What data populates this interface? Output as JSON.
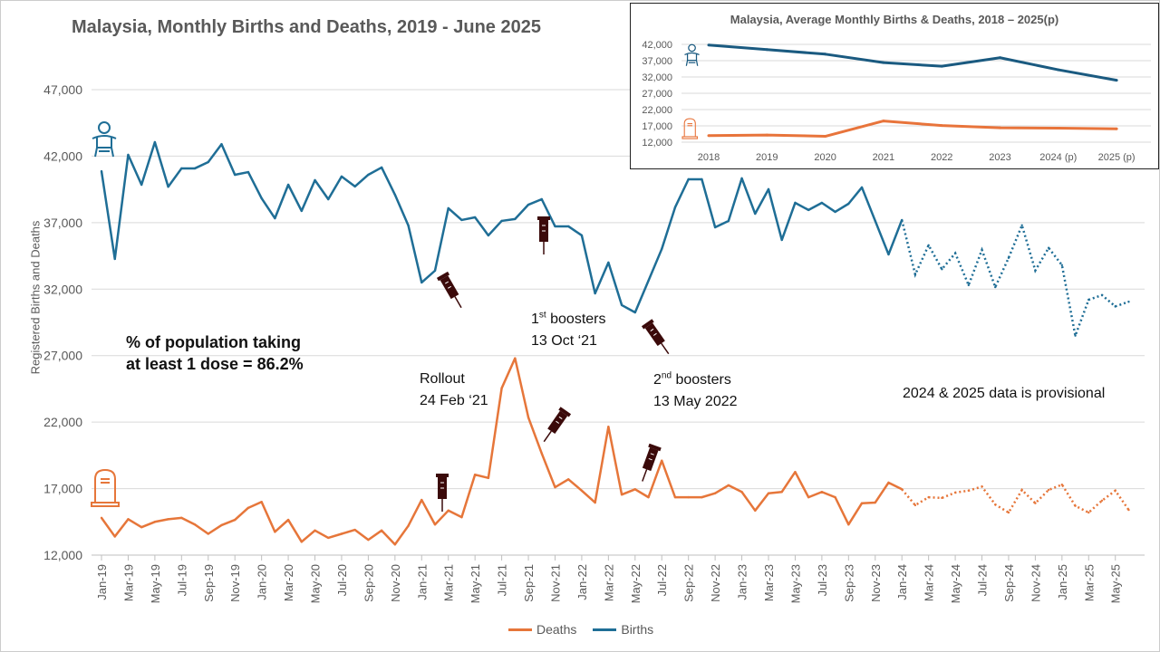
{
  "chart_data": [
    {
      "type": "line",
      "title": "Malaysia, Monthly Births and Deaths, 2019 - June 2025",
      "xlabel": "",
      "ylabel": "Registered Births and Deaths",
      "ylim": [
        12000,
        47000
      ],
      "yticks": [
        "12,000",
        "17,000",
        "22,000",
        "27,000",
        "32,000",
        "37,000",
        "42,000",
        "47,000"
      ],
      "ytick_values": [
        12000,
        17000,
        22000,
        27000,
        32000,
        37000,
        42000,
        47000
      ],
      "xtick_labels": [
        "Jan-19",
        "Mar-19",
        "May-19",
        "Jul-19",
        "Sep-19",
        "Nov-19",
        "Jan-20",
        "Mar-20",
        "May-20",
        "Jul-20",
        "Sep-20",
        "Nov-20",
        "Jan-21",
        "Mar-21",
        "May-21",
        "Jul-21",
        "Sep-21",
        "Nov-21",
        "Jan-22",
        "Mar-22",
        "May-22",
        "Jul-22",
        "Sep-22",
        "Nov-22",
        "Jan-23",
        "Mar-23",
        "May-23",
        "Jul-23",
        "Sep-23",
        "Nov-23",
        "Jan-24",
        "Mar-24",
        "May-24",
        "Jul-24",
        "Sep-24",
        "Nov-24",
        "Jan-25",
        "Mar-25",
        "May-25"
      ],
      "x_start": "Jan-19",
      "provisional_from_index": 60,
      "grid": true,
      "legend_position": "bottom",
      "series": [
        {
          "name": "Deaths",
          "color": "#e6763a",
          "values": [
            14800,
            13400,
            14700,
            14100,
            14500,
            14700,
            14800,
            14300,
            13600,
            14250,
            14650,
            15550,
            16000,
            13750,
            14650,
            13000,
            13850,
            13300,
            13600,
            13900,
            13150,
            13850,
            12800,
            14200,
            16150,
            14300,
            15350,
            14850,
            18050,
            17800,
            24550,
            26800,
            22350,
            19650,
            17100,
            17700,
            16850,
            15950,
            21650,
            16550,
            16950,
            16350,
            19100,
            16350,
            16350,
            16350,
            16650,
            17250,
            16750,
            15350,
            16650,
            16750,
            18250,
            16350,
            16750,
            16350,
            14300,
            15900,
            15950,
            17450,
            16950,
            15750,
            16350,
            16300,
            16700,
            16850,
            17150,
            15800,
            15200,
            16900,
            15900,
            16900,
            17300,
            15700,
            15200,
            16100,
            16850,
            15400
          ]
        },
        {
          "name": "Births",
          "color": "#1f6e96",
          "values": [
            40870,
            34270,
            42100,
            39850,
            43050,
            39700,
            41080,
            41080,
            41550,
            42900,
            40600,
            40800,
            38830,
            37330,
            39850,
            37880,
            40190,
            38760,
            40470,
            39720,
            40600,
            41150,
            39100,
            36790,
            32500,
            33390,
            38080,
            37200,
            37400,
            36040,
            37130,
            37270,
            38350,
            38760,
            36720,
            36720,
            36040,
            31680,
            34000,
            30800,
            30250,
            32630,
            35020,
            38150,
            40260,
            40260,
            36650,
            37130,
            40330,
            37670,
            39510,
            35700,
            38490,
            37950,
            38490,
            37810,
            38420,
            39650,
            37130,
            34610,
            37200,
            33100,
            35300,
            33500,
            34700,
            32300,
            34950,
            32150,
            34350,
            36800,
            33400,
            35100,
            33800,
            28500,
            31200,
            31550,
            30700,
            31050
          ]
        }
      ]
    },
    {
      "type": "line",
      "title": "Malaysia, Average Monthly Births & Deaths, 2018 – 2025(p)",
      "categories": [
        "2018",
        "2019",
        "2020",
        "2021",
        "2022",
        "2023",
        "2024 (p)",
        "2025 (p)"
      ],
      "ylim": [
        12000,
        42000
      ],
      "yticks": [
        "12,000",
        "17,000",
        "22,000",
        "27,000",
        "32,000",
        "37,000",
        "42,000"
      ],
      "ytick_values": [
        12000,
        17000,
        22000,
        27000,
        32000,
        37000,
        42000
      ],
      "grid": true,
      "series": [
        {
          "name": "Births",
          "color": "#1a5a80",
          "values": [
            41800,
            40400,
            39000,
            36400,
            35300,
            37900,
            34200,
            31000
          ]
        },
        {
          "name": "Deaths",
          "color": "#e8743b",
          "values": [
            14000,
            14200,
            13800,
            18500,
            17100,
            16400,
            16300,
            16100
          ]
        }
      ]
    }
  ],
  "annotations": {
    "coverage_line1": "% of population taking",
    "coverage_line2": "at least 1 dose = 86.2%",
    "rollout_line1": "Rollout",
    "rollout_line2": "24 Feb ‘21",
    "booster1_num": "1",
    "booster1_sup": "st",
    "booster1_word": " boosters",
    "booster1_date": "13 Oct ‘21",
    "booster2_num": "2",
    "booster2_sup": "nd",
    "booster2_word": " boosters",
    "booster2_date": "13 May 2022",
    "provisional_note": "2024 & 2025 data is provisional"
  },
  "legend": {
    "deaths": "Deaths",
    "births": "Births"
  }
}
